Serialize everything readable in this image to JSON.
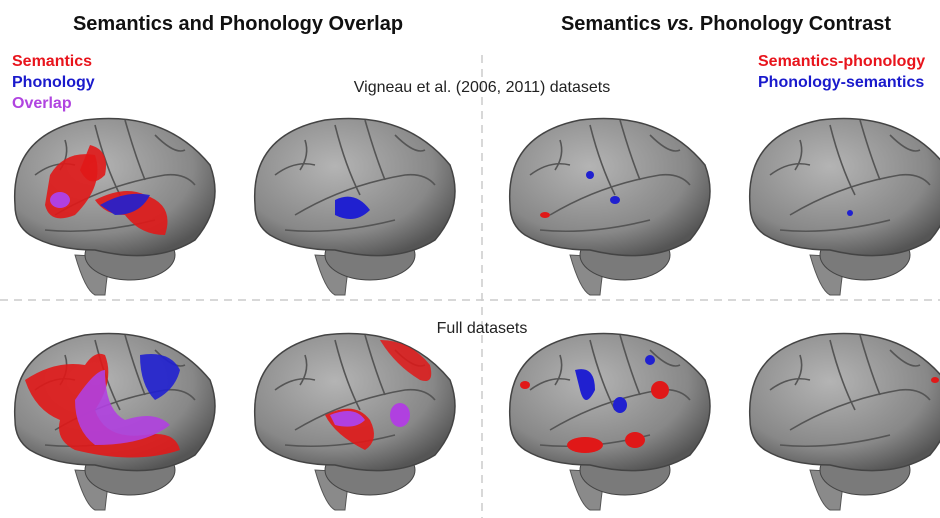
{
  "header": {
    "left_title": "Semantics and Phonology Overlap",
    "right_title": [
      "Semantics ",
      "vs.",
      " Phonology Contrast"
    ]
  },
  "legend_left": [
    "Semantics",
    "Phonology",
    "Overlap"
  ],
  "legend_right": [
    "Semantics-phonology",
    "Phonology-semantics"
  ],
  "rows": [
    "Vigneau et al. (2006, 2011) datasets",
    "Full datasets"
  ]
}
